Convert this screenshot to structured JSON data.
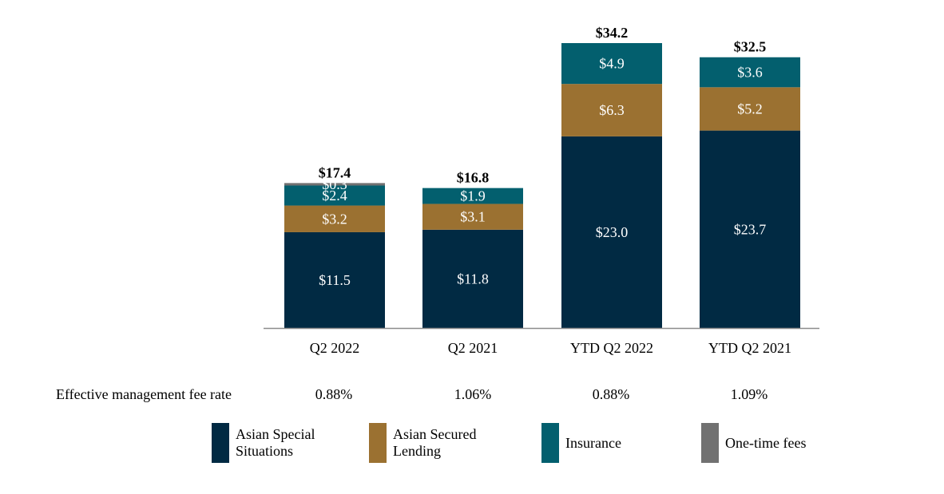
{
  "chart_data": {
    "type": "bar",
    "stacked": true,
    "categories": [
      "Q2 2022",
      "Q2 2021",
      "YTD Q2 2022",
      "YTD Q2 2021"
    ],
    "series": [
      {
        "name": "Asian Special Situations",
        "color": "#012a43",
        "values": [
          11.5,
          11.8,
          23.0,
          23.7
        ],
        "labels": [
          "$11.5",
          "$11.8",
          "$23.0",
          "$23.7"
        ]
      },
      {
        "name": "Asian Secured Lending",
        "color": "#9b7131",
        "values": [
          3.2,
          3.1,
          6.3,
          5.2
        ],
        "labels": [
          "$3.2",
          "$3.1",
          "$6.3",
          "$5.2"
        ]
      },
      {
        "name": "Insurance",
        "color": "#035f6e",
        "values": [
          2.4,
          1.9,
          4.9,
          3.6
        ],
        "labels": [
          "$2.4",
          "$1.9",
          "$4.9",
          "$3.6"
        ]
      },
      {
        "name": "One-time fees",
        "color": "#717171",
        "values": [
          0.3,
          0,
          0,
          0
        ],
        "labels": [
          "$0.3",
          "",
          "",
          ""
        ]
      }
    ],
    "totals": [
      "$17.4",
      "$16.8",
      "$34.2",
      "$32.5"
    ],
    "total_values": [
      17.4,
      16.8,
      34.2,
      32.5
    ],
    "ylim": [
      0,
      34.2
    ],
    "axis_color": "#8c8c8c"
  },
  "rates": {
    "title": "Effective management fee rate",
    "values": [
      "0.88%",
      "1.06%",
      "0.88%",
      "1.09%"
    ]
  },
  "legend": {
    "items": [
      {
        "label": "Asian Special Situations",
        "color": "#012a43"
      },
      {
        "label": "Asian Secured Lending",
        "color": "#9b7131"
      },
      {
        "label": "Insurance",
        "color": "#035f6e"
      },
      {
        "label": "One-time fees",
        "color": "#717171"
      }
    ]
  }
}
